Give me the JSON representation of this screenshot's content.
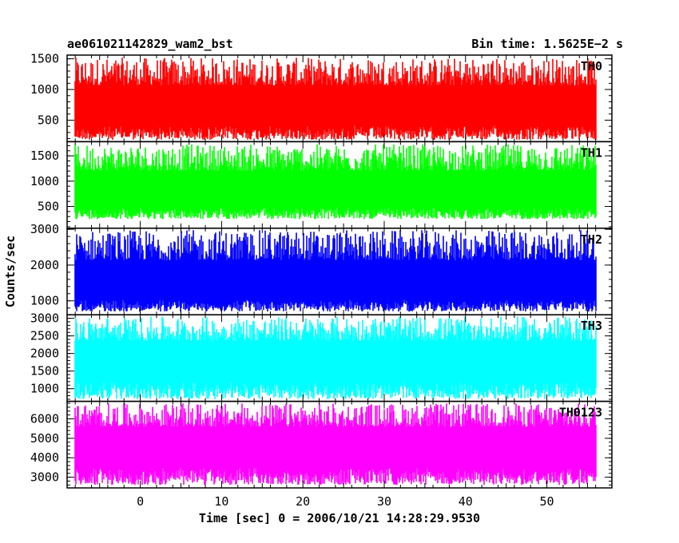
{
  "chart_data": {
    "type": "line",
    "title": "ae061021142829_wam2_bst",
    "subtitle": "Bin time: 1.5625E−2 s",
    "xlabel": "Time [sec] 0 = 2006/10/21 14:28:29.9530",
    "ylabel": "Counts/sec",
    "xlim": [
      -9,
      58
    ],
    "data_range": [
      -8.0,
      56.0
    ],
    "bin_time": 0.015625,
    "xticks": [
      0,
      10,
      20,
      30,
      40,
      50
    ],
    "grid": false,
    "legend": "none",
    "panels": [
      {
        "name": "TH0",
        "color": "#ff0000",
        "ylim": [
          150,
          1560
        ],
        "yticks": [
          500,
          1000,
          1500
        ],
        "mean": 700,
        "min": 180,
        "max": 1520
      },
      {
        "name": "TH1",
        "color": "#00ff00",
        "ylim": [
          70,
          1780
        ],
        "yticks": [
          500,
          1000,
          1500
        ],
        "mean": 780,
        "min": 250,
        "max": 1730
      },
      {
        "name": "TH2",
        "color": "#0000ff",
        "ylim": [
          610,
          3030
        ],
        "yticks": [
          1000,
          2000,
          3000
        ],
        "mean": 1450,
        "min": 700,
        "max": 2980
      },
      {
        "name": "TH3",
        "color": "#00ffff",
        "ylim": [
          640,
          3100
        ],
        "yticks": [
          1000,
          1500,
          2000,
          2500,
          3000
        ],
        "mean": 1800,
        "min": 700,
        "max": 3050
      },
      {
        "name": "TH0123",
        "color": "#ff00ff",
        "ylim": [
          2450,
          6900
        ],
        "yticks": [
          3000,
          4000,
          5000,
          6000
        ],
        "mean": 4600,
        "min": 2600,
        "max": 6800
      }
    ]
  }
}
